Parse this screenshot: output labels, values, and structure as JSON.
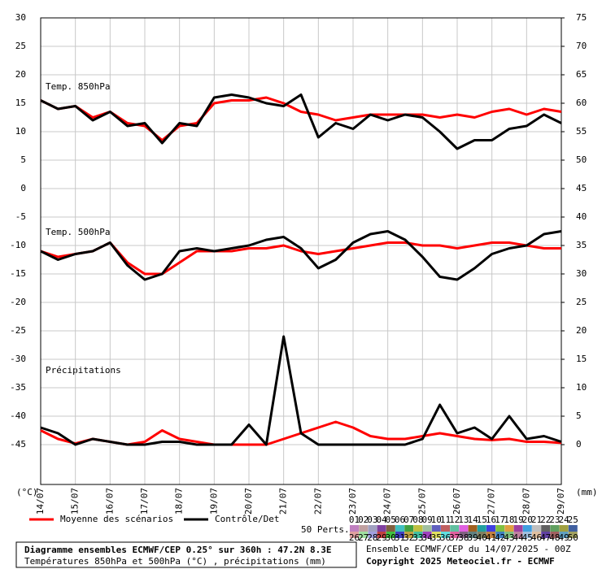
{
  "chart_data": {
    "type": "line",
    "panel_labels": [
      "Temp. 850hPa",
      "Temp. 500hPa",
      "Précipitations"
    ],
    "y_unit": "(°C)",
    "y2_unit": "(mm)",
    "xlim": [
      0,
      15
    ],
    "xticks": [
      {
        "value": 0,
        "label": "14/07"
      },
      {
        "value": 1,
        "label": "15/07"
      },
      {
        "value": 2,
        "label": "16/07"
      },
      {
        "value": 3,
        "label": "17/07"
      },
      {
        "value": 4,
        "label": "18/07"
      },
      {
        "value": 5,
        "label": "19/07"
      },
      {
        "value": 6,
        "label": "20/07"
      },
      {
        "value": 7,
        "label": "21/07"
      },
      {
        "value": 8,
        "label": "22/07"
      },
      {
        "value": 9,
        "label": "23/07"
      },
      {
        "value": 10,
        "label": "24/07"
      },
      {
        "value": 11,
        "label": "25/07"
      },
      {
        "value": 12,
        "label": "26/07"
      },
      {
        "value": 13,
        "label": "27/07"
      },
      {
        "value": 14,
        "label": "28/07"
      },
      {
        "value": 15,
        "label": "29/07"
      }
    ],
    "ylim": [
      -52,
      30
    ],
    "yticks": [
      30,
      25,
      20,
      15,
      10,
      5,
      0,
      -5,
      -10,
      -15,
      -20,
      -25,
      -30,
      -35,
      -40,
      -45
    ],
    "y2lim": [
      -7,
      75
    ],
    "y2ticks": [
      75,
      70,
      65,
      60,
      55,
      50,
      45,
      40,
      35,
      30,
      25,
      20,
      15,
      10,
      5,
      0
    ],
    "grid": true,
    "x": [
      0,
      0.5,
      1,
      1.5,
      2,
      2.5,
      3,
      3.5,
      4,
      4.5,
      5,
      5.5,
      6,
      6.5,
      7,
      7.5,
      8,
      8.5,
      9,
      9.5,
      10,
      10.5,
      11,
      11.5,
      12,
      12.5,
      13,
      13.5,
      14,
      14.5,
      15
    ],
    "series": [
      {
        "name": "Moyenne des scénarios",
        "color": "#ff0000",
        "width": 3,
        "axis": "y",
        "values": [
          15.5,
          14,
          14.5,
          12.5,
          13.5,
          11.5,
          11,
          8.5,
          11,
          11.5,
          15,
          15.5,
          15.5,
          16,
          15,
          13.5,
          13,
          12,
          12.5,
          13,
          13,
          13,
          13,
          12.5,
          13,
          12.5,
          13.5,
          14,
          13,
          14,
          13.5
        ]
      },
      {
        "name": "Contrôle/Det",
        "color": "#000000",
        "width": 3,
        "axis": "y",
        "values": [
          15.5,
          14,
          14.5,
          12,
          13.5,
          11,
          11.5,
          8,
          11.5,
          11,
          16,
          16.5,
          16,
          15,
          14.5,
          16.5,
          9,
          11.5,
          10.5,
          13,
          12,
          13,
          12.5,
          10,
          7,
          8.5,
          8.5,
          10.5,
          11,
          13,
          11.5
        ]
      },
      {
        "color": "#ff0000",
        "width": 3,
        "axis": "y",
        "values": [
          -11,
          -12,
          -11.5,
          -11,
          -9.5,
          -13,
          -15,
          -15,
          -13,
          -11,
          -11,
          -11,
          -10.5,
          -10.5,
          -10,
          -11,
          -11.5,
          -11,
          -10.5,
          -10,
          -9.5,
          -9.5,
          -10,
          -10,
          -10.5,
          -10,
          -9.5,
          -9.5,
          -10,
          -10.5,
          -10.5
        ]
      },
      {
        "color": "#000000",
        "width": 3,
        "axis": "y",
        "values": [
          -11,
          -12.5,
          -11.5,
          -11,
          -9.5,
          -13.5,
          -16,
          -15,
          -11,
          -10.5,
          -11,
          -10.5,
          -10,
          -9,
          -8.5,
          -10.5,
          -14,
          -12.5,
          -9.5,
          -8,
          -7.5,
          -9,
          -12,
          -15.5,
          -16,
          -14,
          -11.5,
          -10.5,
          -10,
          -8,
          -7.5
        ]
      },
      {
        "color": "#ff0000",
        "width": 3,
        "axis": "y2",
        "values": [
          2.5,
          1,
          0.2,
          1,
          0.5,
          0,
          0.5,
          2.5,
          1,
          0.5,
          0,
          0,
          0,
          0,
          1,
          2,
          3,
          4,
          3,
          1.5,
          1,
          1,
          1.5,
          2,
          1.5,
          1,
          0.8,
          1,
          0.5,
          0.5,
          0.3
        ]
      },
      {
        "color": "#000000",
        "width": 3,
        "axis": "y2",
        "values": [
          3,
          2,
          0,
          1,
          0.5,
          0,
          0,
          0.5,
          0.5,
          0,
          0,
          0,
          3.5,
          0,
          19,
          2,
          0,
          0,
          0,
          0,
          0,
          0,
          1,
          7,
          2,
          3,
          1,
          5,
          1,
          1.5,
          0.5
        ]
      }
    ],
    "members_label": "50 Perts.",
    "members": [
      {
        "label": "01",
        "color": "#c080c0"
      },
      {
        "label": "02",
        "color": "#c0a0a0"
      },
      {
        "label": "03",
        "color": "#a0a0c0"
      },
      {
        "label": "04",
        "color": "#8040a0"
      },
      {
        "label": "05",
        "color": "#806040"
      },
      {
        "label": "06",
        "color": "#40c0c0"
      },
      {
        "label": "07",
        "color": "#40a040"
      },
      {
        "label": "08",
        "color": "#c0c040"
      },
      {
        "label": "09",
        "color": "#a0c0a0"
      },
      {
        "label": "10",
        "color": "#6060c0"
      },
      {
        "label": "11",
        "color": "#c06060"
      },
      {
        "label": "12",
        "color": "#60c0a0"
      },
      {
        "label": "13",
        "color": "#e060e0"
      },
      {
        "label": "14",
        "color": "#a06020"
      },
      {
        "label": "15",
        "color": "#20a0a0"
      },
      {
        "label": "16",
        "color": "#4040e0"
      },
      {
        "label": "17",
        "color": "#80c040"
      },
      {
        "label": "18",
        "color": "#e0a040"
      },
      {
        "label": "19",
        "color": "#a040a0"
      },
      {
        "label": "20",
        "color": "#40a0e0"
      },
      {
        "label": "21",
        "color": "#c0c0c0"
      },
      {
        "label": "22",
        "color": "#606060"
      },
      {
        "label": "23",
        "color": "#60a060"
      },
      {
        "label": "24",
        "color": "#a0a040"
      },
      {
        "label": "25",
        "color": "#4060a0"
      },
      {
        "label": "26",
        "color": "#e0a0a0"
      },
      {
        "label": "27",
        "color": "#a0e0a0"
      },
      {
        "label": "28",
        "color": "#a0a0e0"
      },
      {
        "label": "29",
        "color": "#c04040"
      },
      {
        "label": "30",
        "color": "#40c040"
      },
      {
        "label": "31",
        "color": "#4040c0"
      },
      {
        "label": "32",
        "color": "#c0a040"
      },
      {
        "label": "33",
        "color": "#40c0a0"
      },
      {
        "label": "34",
        "color": "#a040c0"
      },
      {
        "label": "35",
        "color": "#e0e060"
      },
      {
        "label": "36",
        "color": "#60e0e0"
      },
      {
        "label": "37",
        "color": "#e060a0"
      },
      {
        "label": "38",
        "color": "#806080"
      },
      {
        "label": "39",
        "color": "#608080"
      },
      {
        "label": "40",
        "color": "#808060"
      },
      {
        "label": "41",
        "color": "#c08040"
      },
      {
        "label": "42",
        "color": "#4080c0"
      },
      {
        "label": "43",
        "color": "#80c080"
      },
      {
        "label": "44",
        "color": "#c080a0"
      },
      {
        "label": "45",
        "color": "#a0c0e0"
      },
      {
        "label": "46",
        "color": "#e0c0a0"
      },
      {
        "label": "47",
        "color": "#6040a0"
      },
      {
        "label": "48",
        "color": "#a06060"
      },
      {
        "label": "49",
        "color": "#60a0c0"
      },
      {
        "label": "50",
        "color": "#a0a060"
      }
    ],
    "footer_title": "Diagramme ensembles ECMWF/CEP 0.25° sur 360h : 47.2N 8.3E",
    "footer_subtitle": "Températures 850hPa et 500hPa (°C) , précipitations (mm)",
    "run_label": "Ensemble ECMWF/CEP du 14/07/2025 - 00Z",
    "copyright": "Copyright 2025 Meteociel.fr - ECMWF"
  }
}
